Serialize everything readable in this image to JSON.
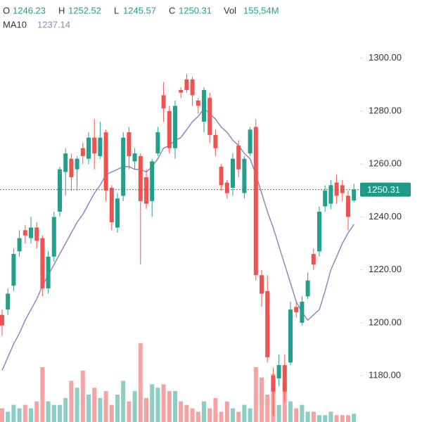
{
  "chart_data": {
    "type": "candlestick",
    "header": {
      "open_label": "O",
      "open": 1246.23,
      "high_label": "H",
      "high": 1252.52,
      "low_label": "L",
      "low": 1245.57,
      "close_label": "C",
      "close": 1250.31,
      "vol_label": "Vol",
      "vol": "155,54M",
      "ma_label": "MA10",
      "ma": 1237.14
    },
    "open": [
      1203,
      1205,
      1214,
      1227,
      1235,
      1232,
      1236,
      1232,
      1213,
      1225,
      1242,
      1257,
      1262,
      1258,
      1266,
      1262,
      1270,
      1263,
      1272,
      1251,
      1236,
      1248,
      1272,
      1261,
      1263,
      1255,
      1246,
      1264,
      1286,
      1280,
      1266,
      1288,
      1292,
      1292,
      1284,
      1276,
      1285,
      1271,
      1259,
      1253,
      1251,
      1267,
      1249,
      1264,
      1274,
      1218,
      1212,
      1180,
      1179,
      1184,
      1185,
      1206,
      1200,
      1210,
      1226,
      1227,
      1244,
      1245,
      1253,
      1252,
      1248,
      1246.23
    ],
    "high": [
      1205,
      1213,
      1228,
      1235,
      1237,
      1240,
      1238,
      1233,
      1227,
      1242,
      1259,
      1266,
      1264,
      1263,
      1268,
      1272,
      1277,
      1276,
      1273,
      1252,
      1249,
      1272,
      1274,
      1266,
      1264,
      1258,
      1262,
      1274,
      1291,
      1282,
      1284,
      1289,
      1294,
      1293,
      1285,
      1289,
      1287,
      1273,
      1260,
      1254,
      1264,
      1269,
      1263,
      1274,
      1277,
      1220,
      1218,
      1183,
      1188,
      1188,
      1208,
      1208,
      1210,
      1219,
      1228,
      1244,
      1252,
      1254,
      1256,
      1254,
      1250,
      1252.52
    ],
    "low": [
      1195,
      1203,
      1212,
      1225,
      1230,
      1230,
      1228,
      1210,
      1211,
      1223,
      1240,
      1248,
      1250,
      1250,
      1260,
      1260,
      1258,
      1262,
      1246,
      1235,
      1234,
      1246,
      1258,
      1258,
      1222,
      1243,
      1240,
      1263,
      1276,
      1264,
      1262,
      1285,
      1287,
      1282,
      1279,
      1272,
      1268,
      1263,
      1250,
      1247,
      1248,
      1255,
      1247,
      1263,
      1216,
      1206,
      1185,
      1165,
      1176,
      1170,
      1184,
      1202,
      1199,
      1209,
      1220,
      1225,
      1242,
      1243,
      1245,
      1246,
      1235,
      1245.57
    ],
    "close": [
      1199,
      1211,
      1226,
      1232,
      1233,
      1236,
      1231,
      1213,
      1225,
      1240,
      1258,
      1264,
      1255,
      1262,
      1263,
      1270,
      1264,
      1270,
      1250,
      1238,
      1247,
      1270,
      1263,
      1264,
      1246,
      1245,
      1261,
      1272,
      1281,
      1266,
      1282,
      1287,
      1288,
      1286,
      1282,
      1288,
      1271,
      1266,
      1252,
      1249,
      1262,
      1258,
      1262,
      1273,
      1218,
      1211,
      1187,
      1174,
      1184,
      1174,
      1205,
      1204,
      1208,
      1216,
      1222,
      1242,
      1250,
      1252,
      1248,
      1249,
      1240,
      1250.31
    ],
    "volume": [
      260,
      195,
      325,
      260,
      325,
      260,
      390,
      1040,
      390,
      325,
      325,
      455,
      780,
      650,
      975,
      520,
      650,
      455,
      585,
      325,
      520,
      780,
      390,
      585,
      1495,
      455,
      715,
      650,
      715,
      585,
      585,
      390,
      325,
      260,
      195,
      390,
      260,
      455,
      195,
      390,
      260,
      195,
      325,
      260,
      1040,
      845,
      520,
      910,
      325,
      585,
      390,
      260,
      325,
      195,
      195,
      130,
      130,
      195,
      130,
      130,
      130,
      155.54
    ],
    "ma10": [
      1182,
      1187,
      1192,
      1196,
      1201,
      1205,
      1209,
      1214,
      1218,
      1222,
      1226,
      1230,
      1234,
      1238,
      1241,
      1245,
      1249,
      1252,
      1256,
      1257,
      1258,
      1259,
      1259,
      1258,
      1258,
      1257,
      1259,
      1262,
      1266,
      1267,
      1269,
      1270,
      1273,
      1276,
      1278,
      1281,
      1279,
      1277,
      1274,
      1272,
      1269,
      1267,
      1264,
      1262,
      1256,
      1249,
      1242,
      1236,
      1229,
      1222,
      1215,
      1208,
      1204,
      1201,
      1203,
      1205,
      1212,
      1220,
      1225,
      1230,
      1234,
      1237.14
    ],
    "last_price": {
      "value": 1250.31,
      "label": "1250.31"
    },
    "ylim": [
      1162.5,
      1322
    ],
    "yticks": [
      {
        "value": 1180,
        "label": "1180.00"
      },
      {
        "value": 1200,
        "label": "1200.00"
      },
      {
        "value": 1220,
        "label": "1220.00"
      },
      {
        "value": 1240,
        "label": "1240.00"
      },
      {
        "value": 1260,
        "label": "1260.00"
      },
      {
        "value": 1280,
        "label": "1280.00"
      },
      {
        "value": 1300,
        "label": "1300.00"
      }
    ],
    "vol_ylim": [
      0,
      2000
    ],
    "up_color": "#22a08c",
    "down_color": "#ef5350",
    "vol_up_color": "#8ccdc4",
    "vol_down_color": "#f5a3a2",
    "ma_color": "#9384bf"
  }
}
